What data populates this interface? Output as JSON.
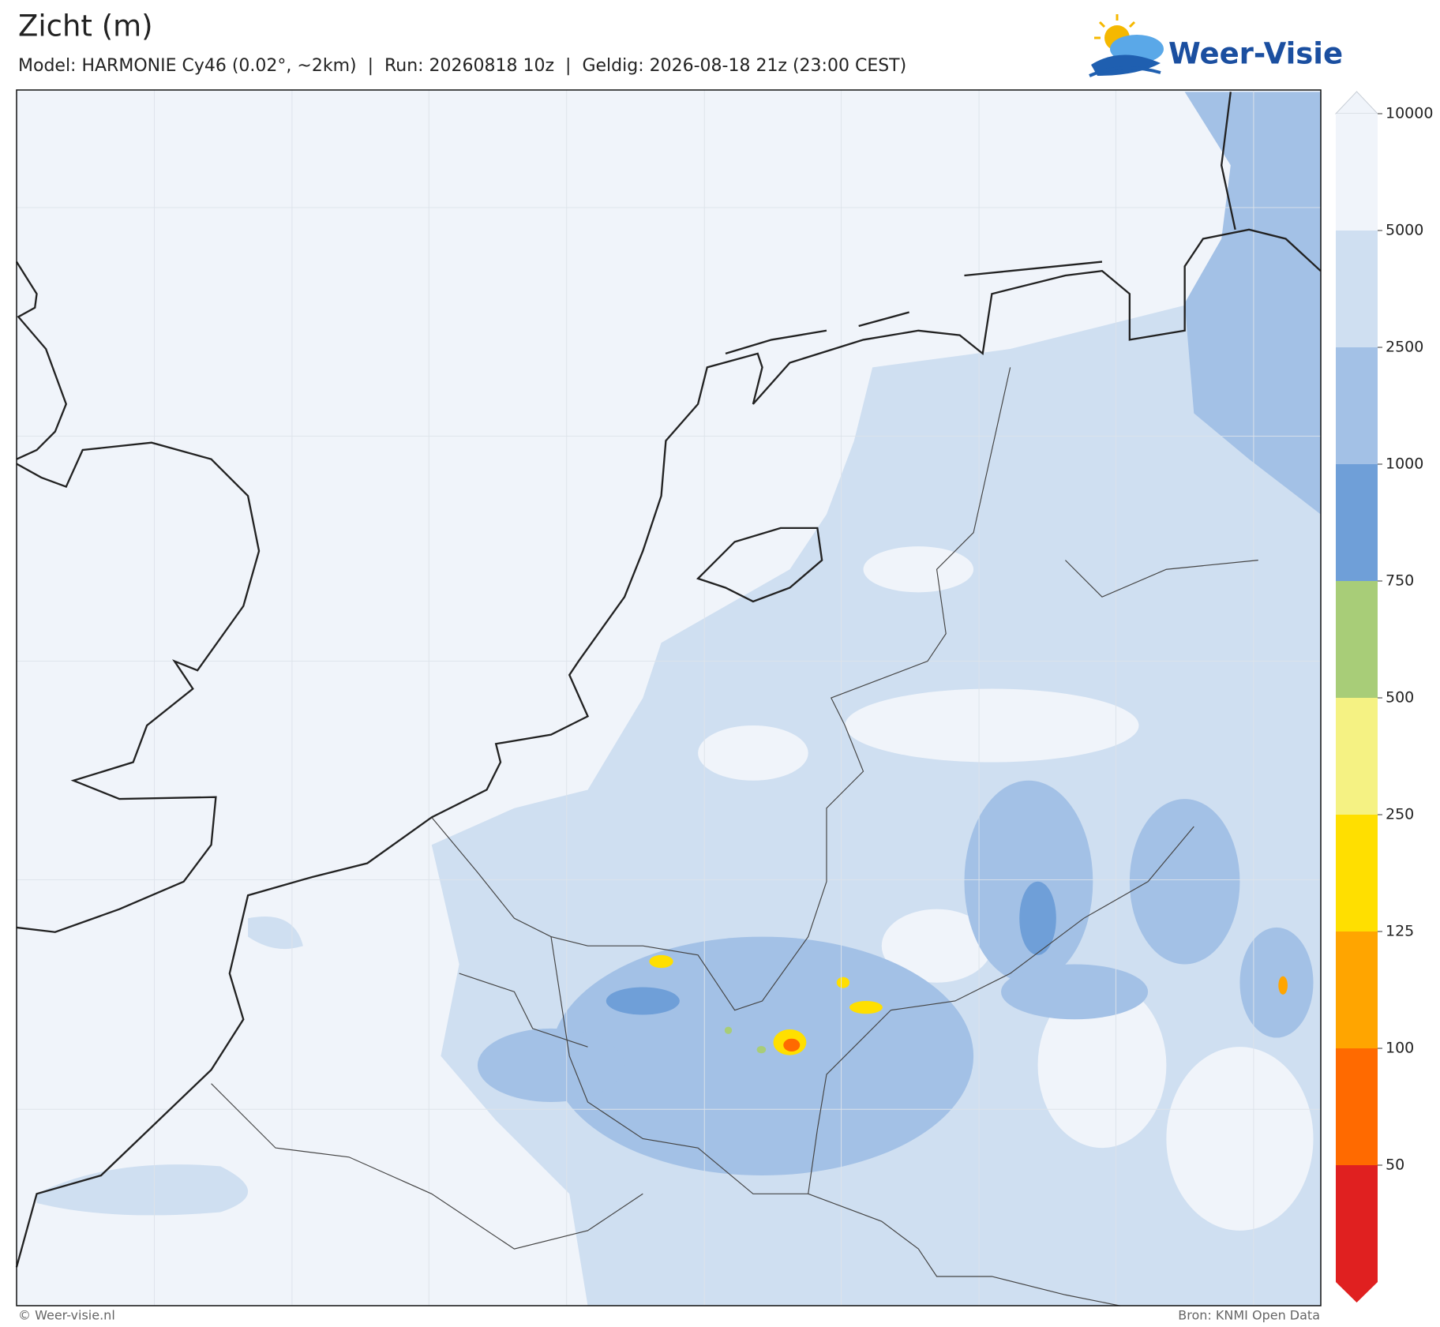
{
  "header": {
    "title": "Zicht (m)",
    "subtitle": "Model: HARMONIE Cy46 (0.02°, ~2km)  |  Run: 20260818 10z  |  Geldig: 2026-08-18 21z (23:00 CEST)"
  },
  "logo": {
    "text": "Weer-Visie"
  },
  "colorbar": {
    "ticks": [
      10000,
      5000,
      2500,
      1000,
      750,
      500,
      250,
      125,
      100,
      50
    ],
    "above_color": "#f0f4fa",
    "band_colors": [
      "#f0f4fa",
      "#cfdff1",
      "#a3c1e6",
      "#6f9fd8",
      "#a8cd78",
      "#f5f283",
      "#ffdf00",
      "#ffa500",
      "#ff6a00"
    ],
    "below_color": "#e02020"
  },
  "footer": {
    "copyright": "© Weer-visie.nl",
    "source": "Bron: KNMI Open Data"
  }
}
